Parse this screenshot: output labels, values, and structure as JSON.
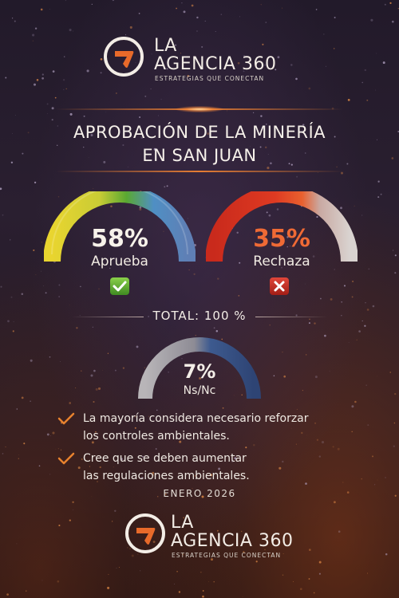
{
  "brand": {
    "line1": "LA",
    "line2": "AGENCIA 360",
    "tagline": "ESTRATEGIAS QUE CONECTAN"
  },
  "title": {
    "line1": "APROBACIÓN DE LA MINERÍA",
    "line2": "EN SAN JUAN"
  },
  "results": {
    "approve": {
      "percent": "58%",
      "label": "Aprueba",
      "value": 58
    },
    "reject": {
      "percent": "35%",
      "label": "Rechaza",
      "value": 35
    },
    "nsnc": {
      "percent": "7%",
      "label": "Ns/Nc",
      "value": 7
    }
  },
  "total": "TOTAL: 100 %",
  "bullets": [
    {
      "line1": "La mayoría considera necesario reforzar",
      "line2": "los controles ambientales."
    },
    {
      "line1": "Cree que se deben aumentar",
      "line2": "las regulaciones ambientales."
    }
  ],
  "date": "ENERO 2026",
  "colors": {
    "accent": "#e86a2a",
    "approve_yellow": "#d8d23a",
    "approve_green": "#5aa832",
    "approve_blue": "#4f78b8",
    "reject_red": "#d9331f",
    "reject_orange": "#e85a2a",
    "nsnc_blue": "#3c5a8c"
  }
}
